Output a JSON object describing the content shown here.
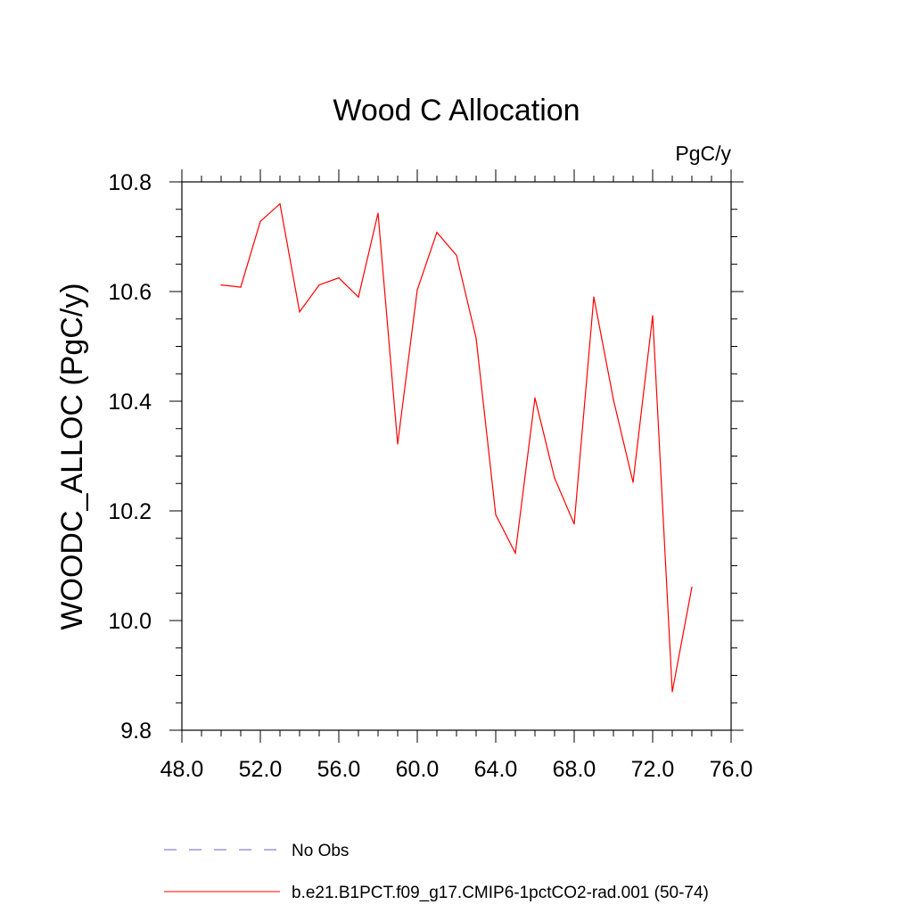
{
  "chart_data": {
    "type": "line",
    "title": "Wood C Allocation",
    "units_label": "PgC/y",
    "xlabel": "",
    "ylabel": "WOODC_ALLOC  (PgC/y)",
    "xlim": [
      48.0,
      76.0
    ],
    "ylim": [
      9.8,
      10.8
    ],
    "x_ticks": [
      "48.0",
      "52.0",
      "56.0",
      "60.0",
      "64.0",
      "68.0",
      "72.0",
      "76.0"
    ],
    "y_ticks": [
      "9.8",
      "10.0",
      "10.2",
      "10.4",
      "10.6",
      "10.8"
    ],
    "grid": false,
    "legend_position": "bottom",
    "series": [
      {
        "name": "No Obs",
        "color": "#6b63c7",
        "style": "dashed",
        "values": []
      },
      {
        "name": "b.e21.B1PCT.f09_g17.CMIP6-1pctCO2-rad.001 (50-74)",
        "color": "#ff0000",
        "style": "solid",
        "x": [
          50,
          51,
          52,
          53,
          54,
          55,
          56,
          57,
          58,
          59,
          60,
          61,
          62,
          63,
          64,
          65,
          66,
          67,
          68,
          69,
          70,
          71,
          72,
          73,
          74
        ],
        "values": [
          10.612,
          10.608,
          10.728,
          10.76,
          10.563,
          10.612,
          10.625,
          10.59,
          10.743,
          10.322,
          10.603,
          10.708,
          10.666,
          10.515,
          10.193,
          10.123,
          10.406,
          10.26,
          10.176,
          10.59,
          10.403,
          10.252,
          10.556,
          9.87,
          10.061
        ]
      }
    ]
  }
}
